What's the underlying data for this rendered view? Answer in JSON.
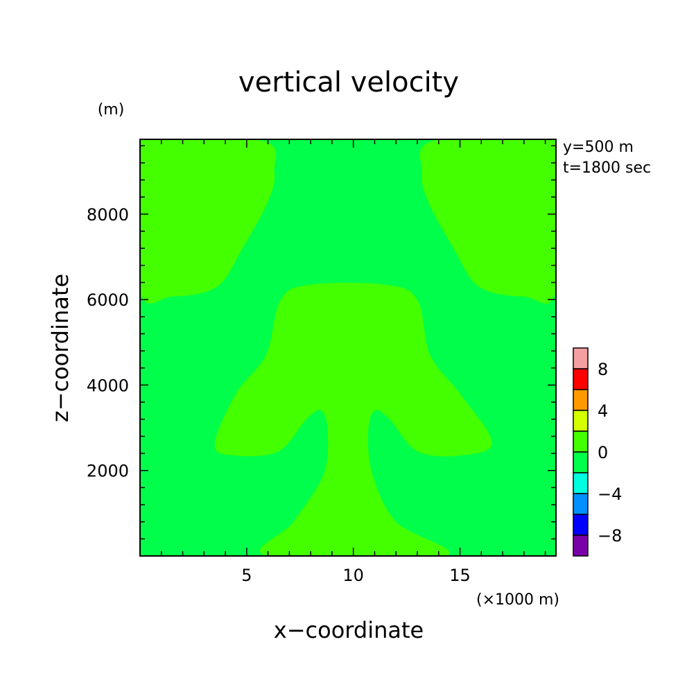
{
  "chart_data": {
    "type": "heatmap",
    "title": "vertical velocity",
    "xlabel": "x−coordinate",
    "ylabel": "z−coordinate",
    "x_unit": "(×1000 m)",
    "y_unit": "(m)",
    "info": [
      "y=500 m",
      "t=1800 sec"
    ],
    "xlim": [
      0,
      19.5
    ],
    "ylim": [
      0,
      9750
    ],
    "x_ticks": [
      "5",
      "10",
      "15"
    ],
    "y_ticks": [
      "2000",
      "4000",
      "6000",
      "8000"
    ],
    "x_tick_values": [
      5,
      10,
      15
    ],
    "y_tick_values": [
      2000,
      4000,
      6000,
      8000
    ],
    "background_level": "-2 to 0",
    "background_color": "#00ff4a",
    "region_level": "0 to 2",
    "region_color": "#43ff00",
    "regions": [
      {
        "name": "upper-left",
        "points": [
          [
            0,
            6230
          ],
          [
            1.5,
            6070
          ],
          [
            3.6,
            6300
          ],
          [
            4.8,
            7200
          ],
          [
            6.0,
            8300
          ],
          [
            6.3,
            9000
          ],
          [
            5.7,
            9720
          ],
          [
            0,
            9750
          ]
        ]
      },
      {
        "name": "upper-right",
        "points": [
          [
            19.5,
            6230
          ],
          [
            18.0,
            6070
          ],
          [
            15.9,
            6300
          ],
          [
            14.7,
            7200
          ],
          [
            13.5,
            8300
          ],
          [
            13.2,
            9000
          ],
          [
            13.8,
            9720
          ],
          [
            19.5,
            9750
          ]
        ]
      },
      {
        "name": "central-plume",
        "points": [
          [
            6.0,
            0
          ],
          [
            7.2,
            800
          ],
          [
            8.6,
            1900
          ],
          [
            8.8,
            2900
          ],
          [
            8.5,
            3400
          ],
          [
            7.8,
            3200
          ],
          [
            6.5,
            2450
          ],
          [
            4.5,
            2350
          ],
          [
            3.5,
            2600
          ],
          [
            4.5,
            3800
          ],
          [
            5.9,
            4700
          ],
          [
            6.6,
            6000
          ],
          [
            8.0,
            6350
          ],
          [
            11.5,
            6350
          ],
          [
            13.0,
            6000
          ],
          [
            13.6,
            4700
          ],
          [
            15.0,
            3800
          ],
          [
            16.5,
            2650
          ],
          [
            15.0,
            2350
          ],
          [
            13.0,
            2450
          ],
          [
            11.7,
            3200
          ],
          [
            11.0,
            3400
          ],
          [
            10.7,
            2900
          ],
          [
            10.9,
            1900
          ],
          [
            12.0,
            800
          ],
          [
            14.3,
            0
          ]
        ]
      }
    ],
    "colorbar": {
      "labels": [
        "8",
        "4",
        "0",
        "−4",
        "−8"
      ],
      "label_values": [
        8,
        4,
        0,
        -4,
        -8
      ],
      "bins": [
        {
          "from": 8,
          "to": 10,
          "color": "#f5a0a0"
        },
        {
          "from": 6,
          "to": 8,
          "color": "#ff0000"
        },
        {
          "from": 4,
          "to": 6,
          "color": "#ff9900"
        },
        {
          "from": 2,
          "to": 4,
          "color": "#d4ff00"
        },
        {
          "from": 0,
          "to": 2,
          "color": "#43ff00"
        },
        {
          "from": -2,
          "to": 0,
          "color": "#00ff4a"
        },
        {
          "from": -4,
          "to": -2,
          "color": "#00ffe0"
        },
        {
          "from": -6,
          "to": -4,
          "color": "#0090ff"
        },
        {
          "from": -8,
          "to": -6,
          "color": "#0000ff"
        },
        {
          "from": -10,
          "to": -8,
          "color": "#7a00a8"
        }
      ]
    }
  }
}
